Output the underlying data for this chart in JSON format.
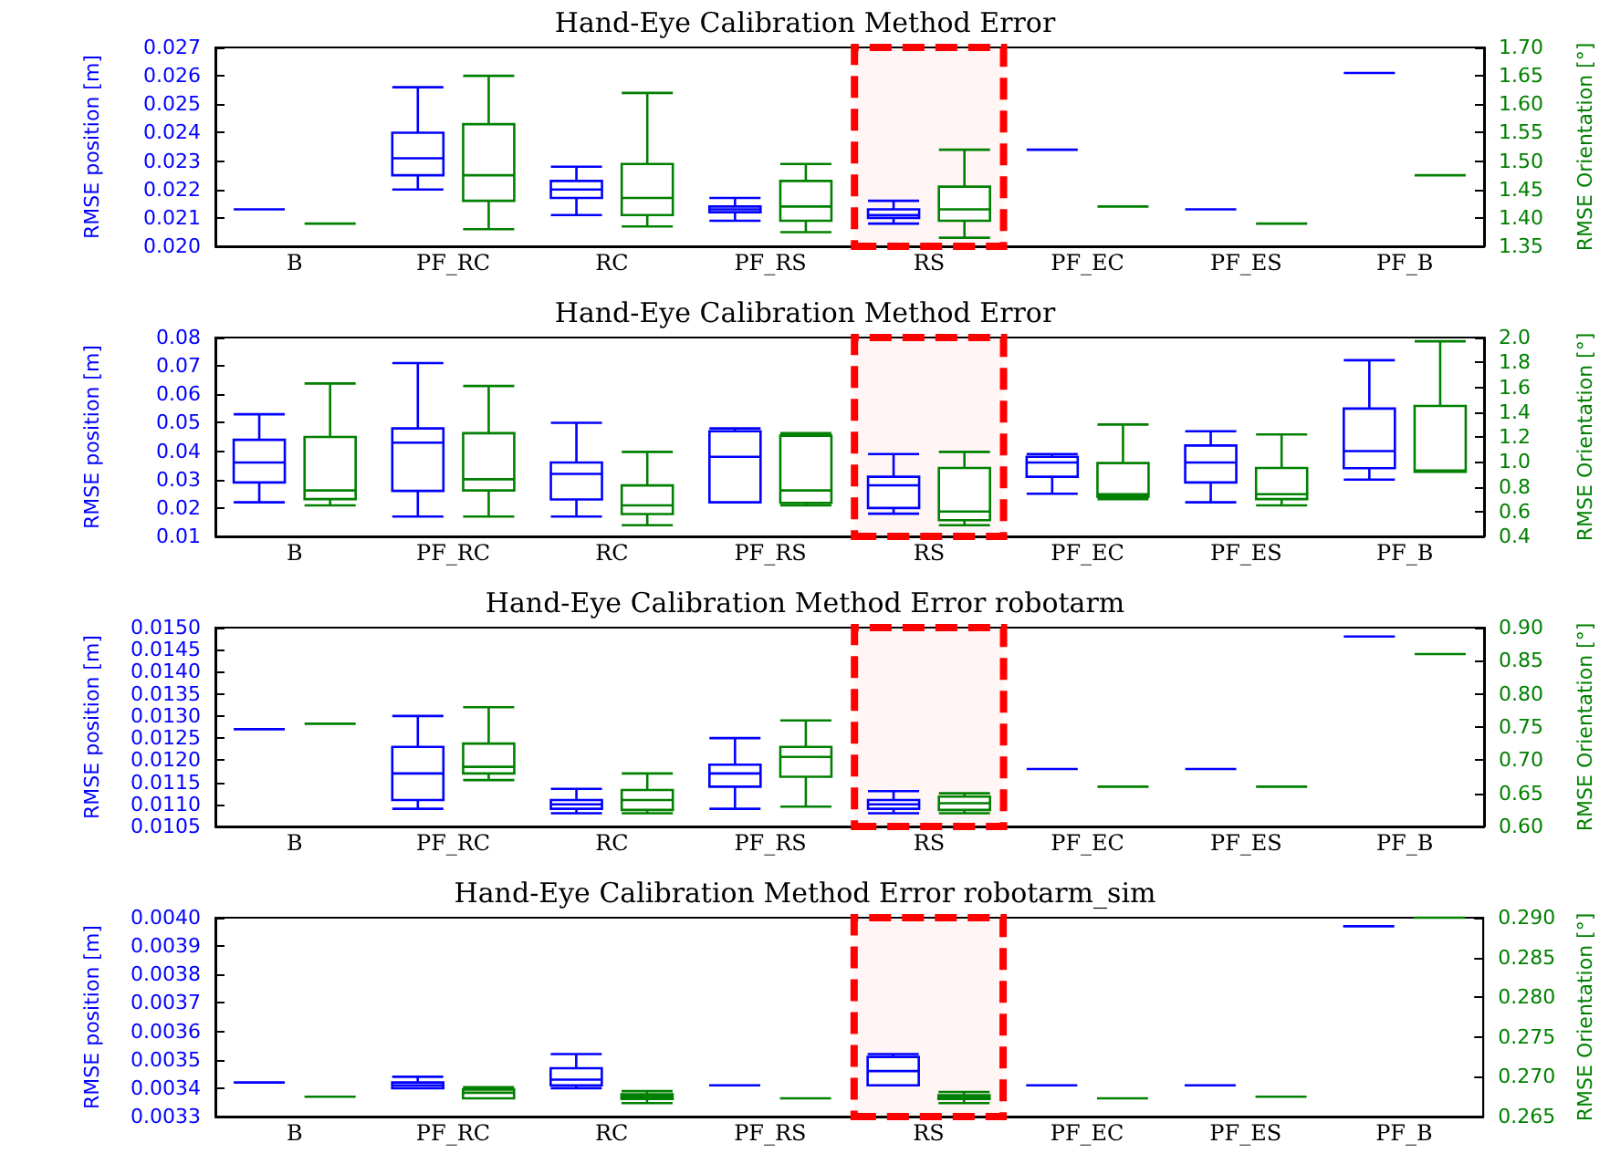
{
  "chart_data": [
    {
      "type": "box",
      "title": "Hand-Eye Calibration Method Error",
      "ylabel": "RMSE position [m]",
      "y2label": "RMSE Orientation [°]",
      "categories": [
        "B",
        "PF_RC",
        "RC",
        "PF_RS",
        "RS",
        "PF_EC",
        "PF_ES",
        "PF_B"
      ],
      "ylim": [
        0.02,
        0.027
      ],
      "yticks": [
        {
          "value": 0.02,
          "label": "0.020"
        },
        0.021,
        0.022,
        0.023,
        0.024,
        0.025,
        0.026,
        0.027
      ],
      "y2lim": [
        1.35,
        1.7
      ],
      "y2ticks": [
        1.35,
        {
          "value": 1.4,
          "label": "1.40"
        },
        1.45,
        {
          "value": 1.5,
          "label": "1.50"
        },
        1.55,
        {
          "value": 1.6,
          "label": "1.60"
        },
        1.65,
        {
          "value": 1.7,
          "label": "1.70"
        }
      ],
      "bands": [
        {
          "axis": "x",
          "from": "RS",
          "to": "RS",
          "color": "#ff0000"
        }
      ],
      "series": [
        {
          "color": "#0000ff",
          "boxes": [
            {
              "low": 0.0213,
              "q1": 0.0213,
              "median": 0.0213,
              "q3": 0.0213,
              "high": 0.0213
            },
            {
              "low": 0.022,
              "q1": 0.0225,
              "median": 0.0231,
              "q3": 0.024,
              "high": 0.0256
            },
            {
              "low": 0.0211,
              "q1": 0.0217,
              "median": 0.022,
              "q3": 0.0223,
              "high": 0.0228
            },
            {
              "low": 0.0209,
              "q1": 0.0212,
              "median": 0.0213,
              "q3": 0.0214,
              "high": 0.0217
            },
            {
              "low": 0.0208,
              "q1": 0.021,
              "median": 0.0211,
              "q3": 0.0213,
              "high": 0.0216
            },
            {
              "low": 0.0234,
              "q1": 0.0234,
              "median": 0.0234,
              "q3": 0.0234,
              "high": 0.0234
            },
            {
              "low": 0.0213,
              "q1": 0.0213,
              "median": 0.0213,
              "q3": 0.0213,
              "high": 0.0213
            },
            {
              "low": 0.0261,
              "q1": 0.0261,
              "median": 0.0261,
              "q3": 0.0261,
              "high": 0.0261
            }
          ]
        },
        {
          "color": "#008000",
          "axis": "y2",
          "boxes": [
            {
              "low": 1.39,
              "q1": 1.39,
              "median": 1.39,
              "q3": 1.39,
              "high": 1.39
            },
            {
              "low": 1.38,
              "q1": 1.43,
              "median": 1.475,
              "q3": 1.565,
              "high": 1.65
            },
            {
              "low": 1.385,
              "q1": 1.405,
              "median": 1.435,
              "q3": 1.495,
              "high": 1.62
            },
            {
              "low": 1.375,
              "q1": 1.395,
              "median": 1.42,
              "q3": 1.465,
              "high": 1.495
            },
            {
              "low": 1.365,
              "q1": 1.395,
              "median": 1.415,
              "q3": 1.455,
              "high": 1.52
            },
            {
              "low": 1.42,
              "q1": 1.42,
              "median": 1.42,
              "q3": 1.42,
              "high": 1.42
            },
            {
              "low": 1.39,
              "q1": 1.39,
              "median": 1.39,
              "q3": 1.39,
              "high": 1.39
            },
            {
              "low": 1.475,
              "q1": 1.475,
              "median": 1.475,
              "q3": 1.475,
              "high": 1.475
            }
          ]
        }
      ]
    },
    {
      "type": "box",
      "title": "Hand-Eye Calibration Method Error",
      "ylabel": "RMSE position [m]",
      "y2label": "RMSE Orientation [°]",
      "categories": [
        "B",
        "PF_RC",
        "RC",
        "PF_RS",
        "RS",
        "PF_EC",
        "PF_ES",
        "PF_B"
      ],
      "ylim": [
        0.01,
        0.08
      ],
      "yticks": [
        0.01,
        0.02,
        0.03,
        0.04,
        0.05,
        0.06,
        0.07,
        0.08
      ],
      "y2lim": [
        0.4,
        2.0
      ],
      "y2ticks": [
        0.4,
        0.6,
        0.8,
        {
          "value": 1.0,
          "label": "1.0"
        },
        1.2,
        1.4,
        1.6,
        1.8,
        {
          "value": 2.0,
          "label": "2.0"
        }
      ],
      "bands": [
        {
          "axis": "x",
          "from": "RS",
          "to": "RS",
          "color": "#ff0000"
        }
      ],
      "series": [
        {
          "color": "#0000ff",
          "boxes": [
            {
              "low": 0.022,
              "q1": 0.029,
              "median": 0.036,
              "q3": 0.044,
              "high": 0.053
            },
            {
              "low": 0.017,
              "q1": 0.026,
              "median": 0.043,
              "q3": 0.048,
              "high": 0.071
            },
            {
              "low": 0.017,
              "q1": 0.023,
              "median": 0.032,
              "q3": 0.036,
              "high": 0.05
            },
            {
              "low": 0.022,
              "q1": 0.022,
              "median": 0.038,
              "q3": 0.047,
              "high": 0.048
            },
            {
              "low": 0.018,
              "q1": 0.02,
              "median": 0.028,
              "q3": 0.031,
              "high": 0.039
            },
            {
              "low": 0.025,
              "q1": 0.031,
              "median": 0.036,
              "q3": 0.038,
              "high": 0.039
            },
            {
              "low": 0.022,
              "q1": 0.029,
              "median": 0.036,
              "q3": 0.042,
              "high": 0.047
            },
            {
              "low": 0.03,
              "q1": 0.034,
              "median": 0.04,
              "q3": 0.055,
              "high": 0.072
            }
          ]
        },
        {
          "color": "#008000",
          "axis": "y2",
          "boxes": [
            {
              "low": 0.65,
              "q1": 0.7,
              "median": 0.77,
              "q3": 1.2,
              "high": 1.63
            },
            {
              "low": 0.56,
              "q1": 0.77,
              "median": 0.86,
              "q3": 1.23,
              "high": 1.61
            },
            {
              "low": 0.49,
              "q1": 0.58,
              "median": 0.65,
              "q3": 0.81,
              "high": 1.08
            },
            {
              "low": 0.65,
              "q1": 0.67,
              "median": 0.77,
              "q3": 1.21,
              "high": 1.23
            },
            {
              "low": 0.49,
              "q1": 0.53,
              "median": 0.6,
              "q3": 0.95,
              "high": 1.08
            },
            {
              "low": 0.7,
              "q1": 0.72,
              "median": 0.74,
              "q3": 0.99,
              "high": 1.3
            },
            {
              "low": 0.65,
              "q1": 0.7,
              "median": 0.74,
              "q3": 0.95,
              "high": 1.22
            },
            {
              "low": 0.92,
              "q1": 0.92,
              "median": 0.93,
              "q3": 1.45,
              "high": 1.97
            }
          ]
        }
      ]
    },
    {
      "type": "box",
      "title": "Hand-Eye Calibration Method Error robotarm",
      "ylabel": "RMSE position [m]",
      "y2label": "RMSE Orientation [°]",
      "categories": [
        "B",
        "PF_RC",
        "RC",
        "PF_RS",
        "RS",
        "PF_EC",
        "PF_ES",
        "PF_B"
      ],
      "ylim": [
        0.0105,
        0.015
      ],
      "yticks": [
        0.0105,
        {
          "value": 0.011,
          "label": "0.0110"
        },
        0.0115,
        {
          "value": 0.012,
          "label": "0.0120"
        },
        0.0125,
        {
          "value": 0.013,
          "label": "0.0130"
        },
        0.0135,
        {
          "value": 0.014,
          "label": "0.0140"
        },
        0.0145,
        {
          "value": 0.015,
          "label": "0.0150"
        }
      ],
      "y2lim": [
        0.6,
        0.9
      ],
      "y2ticks": [
        {
          "value": 0.6,
          "label": "0.60"
        },
        0.65,
        {
          "value": 0.7,
          "label": "0.70"
        },
        0.75,
        {
          "value": 0.8,
          "label": "0.80"
        },
        0.85,
        {
          "value": 0.9,
          "label": "0.90"
        }
      ],
      "bands": [
        {
          "axis": "x",
          "from": "RS",
          "to": "RS",
          "color": "#ff0000"
        }
      ],
      "series": [
        {
          "color": "#0000ff",
          "boxes": [
            {
              "low": 0.0127,
              "q1": 0.0127,
              "median": 0.0127,
              "q3": 0.0127,
              "high": 0.0127
            },
            {
              "low": 0.0109,
              "q1": 0.0111,
              "median": 0.0117,
              "q3": 0.0123,
              "high": 0.013
            },
            {
              "low": 0.0108,
              "q1": 0.0109,
              "median": 0.011,
              "q3": 0.0111,
              "high": 0.01135
            },
            {
              "low": 0.0109,
              "q1": 0.0114,
              "median": 0.0117,
              "q3": 0.0119,
              "high": 0.0125
            },
            {
              "low": 0.0108,
              "q1": 0.0109,
              "median": 0.011,
              "q3": 0.0111,
              "high": 0.0113
            },
            {
              "low": 0.0118,
              "q1": 0.0118,
              "median": 0.0118,
              "q3": 0.0118,
              "high": 0.0118
            },
            {
              "low": 0.0118,
              "q1": 0.0118,
              "median": 0.0118,
              "q3": 0.0118,
              "high": 0.0118
            },
            {
              "low": 0.0148,
              "q1": 0.0148,
              "median": 0.0148,
              "q3": 0.0148,
              "high": 0.0148
            }
          ]
        },
        {
          "color": "#008000",
          "axis": "y2",
          "boxes": [
            {
              "low": 0.755,
              "q1": 0.755,
              "median": 0.755,
              "q3": 0.755,
              "high": 0.755
            },
            {
              "low": 0.67,
              "q1": 0.68,
              "median": 0.69,
              "q3": 0.725,
              "high": 0.78
            },
            {
              "low": 0.62,
              "q1": 0.625,
              "median": 0.64,
              "q3": 0.655,
              "high": 0.68
            },
            {
              "low": 0.63,
              "q1": 0.675,
              "median": 0.705,
              "q3": 0.72,
              "high": 0.76
            },
            {
              "low": 0.62,
              "q1": 0.625,
              "median": 0.635,
              "q3": 0.645,
              "high": 0.65
            },
            {
              "low": 0.66,
              "q1": 0.66,
              "median": 0.66,
              "q3": 0.66,
              "high": 0.66
            },
            {
              "low": 0.66,
              "q1": 0.66,
              "median": 0.66,
              "q3": 0.66,
              "high": 0.66
            },
            {
              "low": 0.86,
              "q1": 0.86,
              "median": 0.86,
              "q3": 0.86,
              "high": 0.86
            }
          ]
        }
      ]
    },
    {
      "type": "box",
      "title": "Hand-Eye Calibration Method Error robotarm_sim",
      "ylabel": "RMSE position [m]",
      "y2label": "RMSE Orientation [°]",
      "categories": [
        "B",
        "PF_RC",
        "RC",
        "PF_RS",
        "RS",
        "PF_EC",
        "PF_ES",
        "PF_B"
      ],
      "ylim": [
        0.0033,
        0.004
      ],
      "yticks": [
        0.0033,
        0.0034,
        0.0035,
        0.0036,
        0.0037,
        0.0038,
        0.0039,
        {
          "value": 0.004,
          "label": "0.0040"
        }
      ],
      "y2lim": [
        0.265,
        0.29
      ],
      "y2ticks": [
        0.265,
        {
          "value": 0.27,
          "label": "0.270"
        },
        0.275,
        {
          "value": 0.28,
          "label": "0.280"
        },
        0.285,
        {
          "value": 0.29,
          "label": "0.290"
        }
      ],
      "bands": [
        {
          "axis": "x",
          "from": "RS",
          "to": "RS",
          "color": "#ff0000"
        }
      ],
      "series": [
        {
          "color": "#0000ff",
          "boxes": [
            {
              "low": 0.00342,
              "q1": 0.00342,
              "median": 0.00342,
              "q3": 0.00342,
              "high": 0.00342
            },
            {
              "low": 0.0034,
              "q1": 0.0034,
              "median": 0.00341,
              "q3": 0.00342,
              "high": 0.00344
            },
            {
              "low": 0.0034,
              "q1": 0.00341,
              "median": 0.00343,
              "q3": 0.00347,
              "high": 0.00352
            },
            {
              "low": 0.00341,
              "q1": 0.00341,
              "median": 0.00341,
              "q3": 0.00341,
              "high": 0.00341
            },
            {
              "low": 0.00341,
              "q1": 0.00341,
              "median": 0.00346,
              "q3": 0.00351,
              "high": 0.00352
            },
            {
              "low": 0.00341,
              "q1": 0.00341,
              "median": 0.00341,
              "q3": 0.00341,
              "high": 0.00341
            },
            {
              "low": 0.00341,
              "q1": 0.00341,
              "median": 0.00341,
              "q3": 0.00341,
              "high": 0.00341
            },
            {
              "low": 0.00397,
              "q1": 0.00397,
              "median": 0.00397,
              "q3": 0.00397,
              "high": 0.00397
            }
          ]
        },
        {
          "color": "#008000",
          "axis": "y2",
          "boxes": [
            {
              "low": 0.2675,
              "q1": 0.2675,
              "median": 0.2675,
              "q3": 0.2675,
              "high": 0.2675
            },
            {
              "low": 0.2673,
              "q1": 0.2673,
              "median": 0.268,
              "q3": 0.2684,
              "high": 0.2687
            },
            {
              "low": 0.2667,
              "q1": 0.2672,
              "median": 0.2675,
              "q3": 0.2678,
              "high": 0.2682
            },
            {
              "low": 0.2673,
              "q1": 0.2673,
              "median": 0.2673,
              "q3": 0.2673,
              "high": 0.2673
            },
            {
              "low": 0.2667,
              "q1": 0.2672,
              "median": 0.2675,
              "q3": 0.2677,
              "high": 0.2681
            },
            {
              "low": 0.2673,
              "q1": 0.2673,
              "median": 0.2673,
              "q3": 0.2673,
              "high": 0.2673
            },
            {
              "low": 0.2675,
              "q1": 0.2675,
              "median": 0.2675,
              "q3": 0.2675,
              "high": 0.2675
            },
            {
              "low": 0.29,
              "q1": 0.29,
              "median": 0.29,
              "q3": 0.29,
              "high": 0.29
            }
          ]
        }
      ]
    }
  ]
}
